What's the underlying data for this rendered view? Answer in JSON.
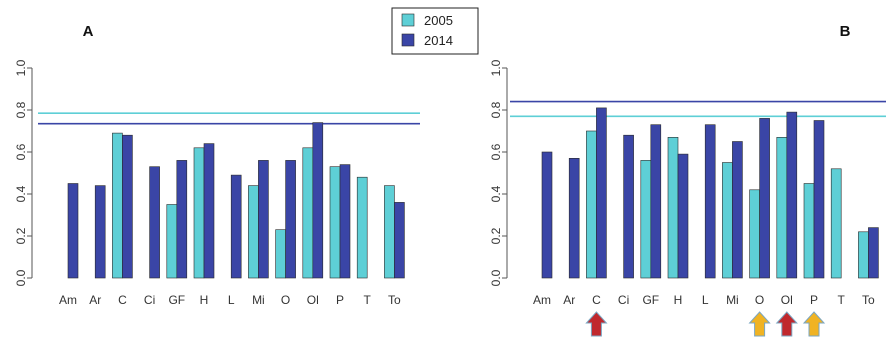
{
  "colors": {
    "series_2005": "#5ecfd6",
    "series_2014": "#3a45a6",
    "bar_stroke": "#2a2a2a",
    "axis": "#555555",
    "arrow_red": "#c0282d",
    "arrow_yellow": "#f0b323",
    "arrow_stroke": "#7aa6c2"
  },
  "legend": {
    "entries": [
      {
        "label": "2005",
        "color": "#5ecfd6"
      },
      {
        "label": "2014",
        "color": "#3a45a6"
      }
    ],
    "placement": "top-center"
  },
  "chart_data": [
    {
      "panel": "A",
      "type": "bar",
      "title": "A",
      "categories": [
        "Am",
        "Ar",
        "C",
        "Ci",
        "GF",
        "H",
        "L",
        "Mi",
        "O",
        "Ol",
        "P",
        "T",
        "To"
      ],
      "ylim": [
        0.0,
        1.0
      ],
      "yticks": [
        "0.0",
        "0.2",
        "0.4",
        "0.6",
        "0.8",
        "1.0"
      ],
      "series": [
        {
          "name": "2005",
          "values": [
            null,
            null,
            0.69,
            null,
            0.35,
            0.62,
            null,
            0.44,
            0.23,
            0.62,
            0.53,
            0.48,
            0.44
          ]
        },
        {
          "name": "2014",
          "values": [
            0.45,
            0.44,
            0.68,
            0.53,
            0.56,
            0.64,
            0.49,
            0.56,
            0.56,
            0.74,
            0.54,
            null,
            0.36
          ]
        }
      ],
      "reference_lines": [
        {
          "series": "2005",
          "y": 0.785
        },
        {
          "series": "2014",
          "y": 0.735
        }
      ],
      "markers": []
    },
    {
      "panel": "B",
      "type": "bar",
      "title": "B",
      "categories": [
        "Am",
        "Ar",
        "C",
        "Ci",
        "GF",
        "H",
        "L",
        "Mi",
        "O",
        "Ol",
        "P",
        "T",
        "To"
      ],
      "ylim": [
        0.0,
        1.0
      ],
      "yticks": [
        "0.0",
        "0.2",
        "0.4",
        "0.6",
        "0.8",
        "1.0"
      ],
      "series": [
        {
          "name": "2005",
          "values": [
            null,
            null,
            0.7,
            null,
            0.56,
            0.67,
            null,
            0.55,
            0.42,
            0.67,
            0.45,
            0.52,
            0.22
          ]
        },
        {
          "name": "2014",
          "values": [
            0.6,
            0.57,
            0.81,
            0.68,
            0.73,
            0.59,
            0.73,
            0.65,
            0.76,
            0.79,
            0.75,
            null,
            0.24
          ]
        }
      ],
      "reference_lines": [
        {
          "series": "2005",
          "y": 0.77
        },
        {
          "series": "2014",
          "y": 0.84
        }
      ],
      "markers": [
        {
          "category": "C",
          "color": "red"
        },
        {
          "category": "O",
          "color": "yellow"
        },
        {
          "category": "Ol",
          "color": "red"
        },
        {
          "category": "P",
          "color": "yellow"
        }
      ]
    }
  ]
}
